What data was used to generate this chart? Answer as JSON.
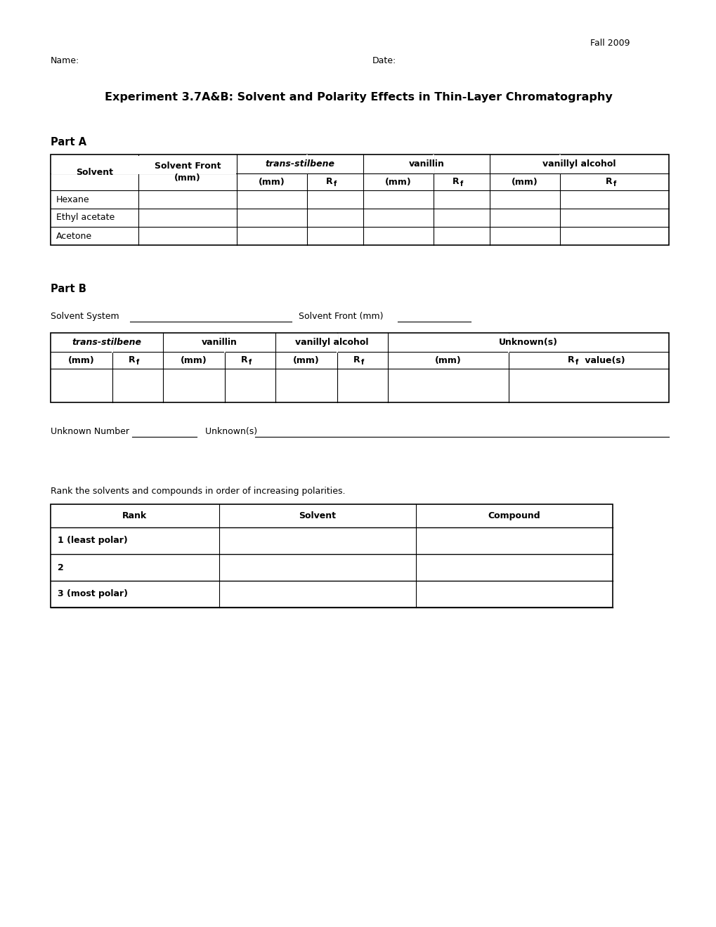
{
  "title": "Experiment 3.7A&B: Solvent and Polarity Effects in Thin-Layer Chromatography",
  "fall_year": "Fall 2009",
  "name_label": "Name:",
  "date_label": "Date:",
  "part_a_label": "Part A",
  "part_b_label": "Part B",
  "solvent_system_label": "Solvent System ",
  "solvent_front_mm_label": "Solvent Front (mm)",
  "unknown_number_label": "Unknown Number ",
  "unknowns_label": "Unknown(s) ",
  "rank_instruction": "Rank the solvents and compounds in order of increasing polarities.",
  "partA_solvents": [
    "Hexane",
    "Ethyl acetate",
    "Acetone"
  ],
  "partB_col_labels_row1": [
    "trans-stilbene",
    "vanillin",
    "vanillyl alcohol",
    "Unknown(s)"
  ],
  "partB_col_labels_row2": [
    "(mm)",
    "Rf",
    "(mm)",
    "Rf",
    "(mm)",
    "Rf",
    "(mm)",
    "Rf value(s)"
  ],
  "rank_headers": [
    "Rank",
    "Solvent",
    "Compound"
  ],
  "rank_rows": [
    "1 (least polar)",
    "2",
    "3 (most polar)"
  ],
  "bg_color": "#ffffff",
  "text_color": "#000000"
}
